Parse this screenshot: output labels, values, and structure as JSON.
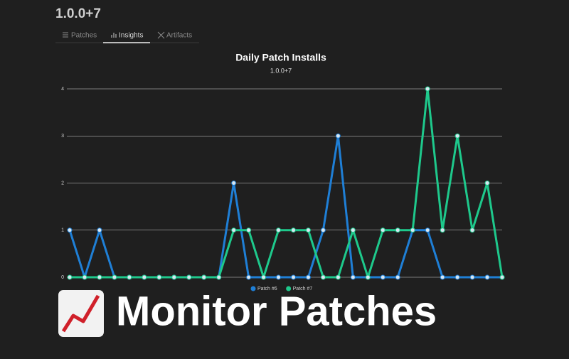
{
  "header": {
    "title": "1.0.0+7"
  },
  "tabs": [
    {
      "label": "Patches",
      "active": false
    },
    {
      "label": "Insights",
      "active": true
    },
    {
      "label": "Artifacts",
      "active": false
    }
  ],
  "chart_data": {
    "type": "line",
    "title": "Daily Patch Installs",
    "subtitle": "1.0.0+7",
    "categories": [
      null,
      null,
      null,
      null,
      null,
      null,
      null,
      null,
      null,
      null,
      null,
      null,
      null,
      null,
      null,
      null,
      null,
      null,
      null,
      null,
      null,
      null,
      null,
      null,
      null,
      null,
      null,
      null,
      null,
      null
    ],
    "series": [
      {
        "name": "Patch #6",
        "color": "#1f7fd6",
        "values": [
          1,
          0,
          1,
          0,
          0,
          0,
          0,
          0,
          0,
          0,
          0,
          2,
          0,
          0,
          0,
          0,
          0,
          1,
          3,
          0,
          0,
          0,
          0,
          1,
          1,
          0,
          0,
          0,
          0,
          0
        ]
      },
      {
        "name": "Patch #7",
        "color": "#1ec98c",
        "values": [
          0,
          0,
          0,
          0,
          0,
          0,
          0,
          0,
          0,
          0,
          0,
          1,
          1,
          0,
          1,
          1,
          1,
          0,
          0,
          1,
          0,
          1,
          1,
          1,
          4,
          1,
          3,
          1,
          2,
          0
        ]
      }
    ],
    "ylim": [
      0,
      4
    ],
    "yticks": [
      0,
      1,
      2,
      3,
      4
    ],
    "grid": true,
    "legend": "bottom"
  },
  "banner": {
    "text": "Monitor Patches"
  }
}
